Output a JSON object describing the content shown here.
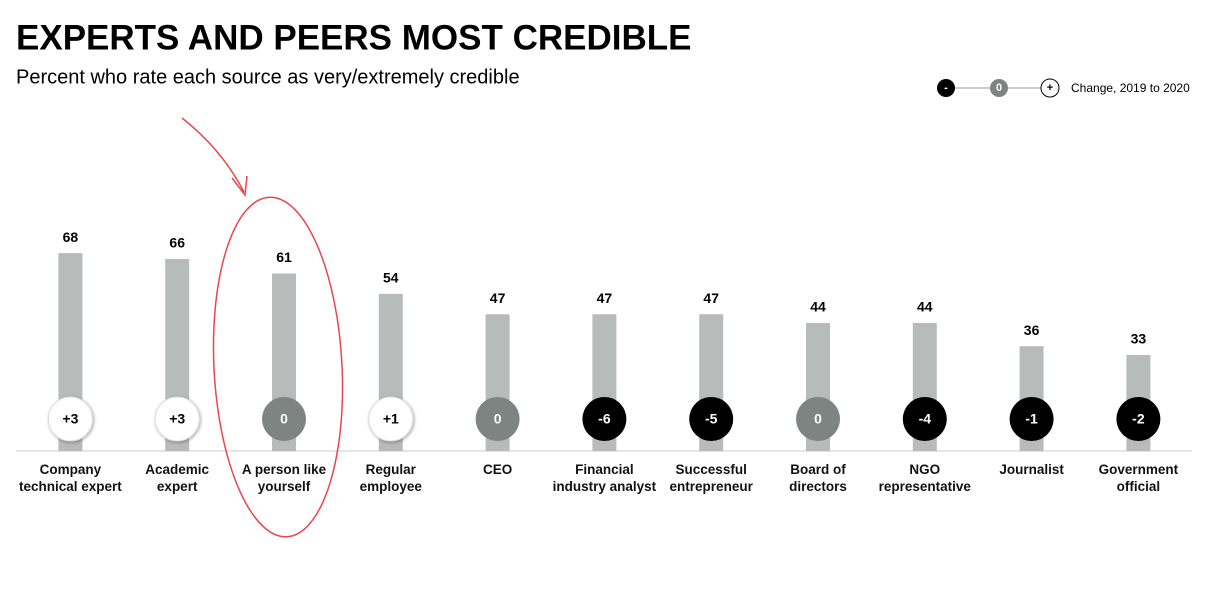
{
  "chart_data": {
    "type": "bar",
    "title": "EXPERTS AND PEERS MOST CREDIBLE",
    "subtitle": "Percent who rate each source as very/extremely credible",
    "categories": [
      "Company technical expert",
      "Academic expert",
      "A person like yourself",
      "Regular employee",
      "CEO",
      "Financial industry analyst",
      "Successful entrepreneur",
      "Board of directors",
      "NGO representative",
      "Journalist",
      "Government official"
    ],
    "values": [
      68,
      66,
      61,
      54,
      47,
      47,
      47,
      44,
      44,
      36,
      33
    ],
    "color": "#b7bcba",
    "ylim": [
      0,
      100
    ],
    "change": {
      "values": [
        3,
        3,
        0,
        1,
        0,
        -6,
        -5,
        0,
        -4,
        -1,
        -2
      ],
      "value_labels": [
        "+3",
        "+3",
        "0",
        "+1",
        "0",
        "-6",
        "-5",
        "0",
        "-4",
        "-1",
        "-2"
      ],
      "colors": {
        "positive": "#ffffff",
        "zero": "#7d8481",
        "negative": "#000000"
      }
    },
    "legend": {
      "labels": [
        "-",
        "0",
        "+"
      ],
      "title": "Change, 2019 to 2020"
    }
  }
}
